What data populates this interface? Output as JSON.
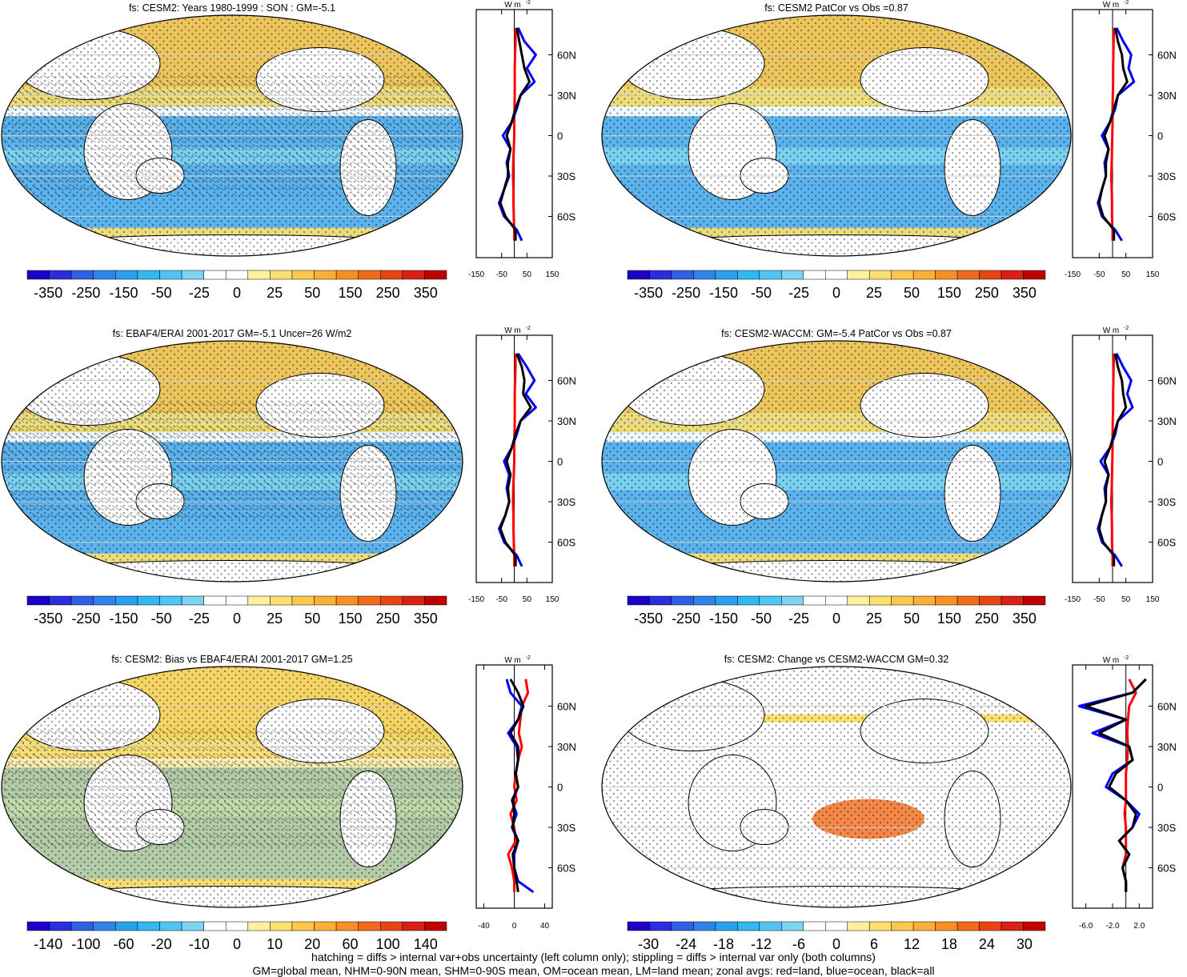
{
  "colors": {
    "palette": [
      "#1a00c8",
      "#2a2ee0",
      "#2f5fe6",
      "#2f84ea",
      "#2aa1ef",
      "#30b8f3",
      "#4fc6f2",
      "#7dd3f2",
      "#ffffff",
      "#ffffff",
      "#fff0a0",
      "#fde070",
      "#fcc84c",
      "#fbaf35",
      "#f78f23",
      "#f06a1a",
      "#e84414",
      "#db1f14",
      "#c00000"
    ],
    "land": "#ffffff",
    "zonal_land": "#ff0000",
    "zonal_ocean": "#0000ff",
    "zonal_all": "#000000"
  },
  "zonal_units": "W m",
  "zonal_units_sup": "-2",
  "lat_labels": [
    "60N",
    "30N",
    "0",
    "30S",
    "60S"
  ],
  "panels": [
    {
      "title": "fs: CESM2: Years 1980-1999 : SON : GM=-5.1",
      "hatching": true,
      "colorbar_labels": [
        "-350",
        "-250",
        "-150",
        "-50",
        "-25",
        "0",
        "25",
        "50",
        "150",
        "250",
        "350"
      ],
      "zonal_ticks": [
        "-150",
        "-50",
        "50",
        "150"
      ]
    },
    {
      "title": "fs: CESM2 PatCor vs Obs =0.87",
      "hatching": false,
      "colorbar_labels": [
        "-350",
        "-250",
        "-150",
        "-50",
        "-25",
        "0",
        "25",
        "50",
        "150",
        "250",
        "350"
      ],
      "zonal_ticks": [
        "-150",
        "-50",
        "50",
        "150"
      ]
    },
    {
      "title": "fs: EBAF4/ERAI 2001-2017 GM=-5.1 Uncer=26 W/m2",
      "hatching": true,
      "colorbar_labels": [
        "-350",
        "-250",
        "-150",
        "-50",
        "-25",
        "0",
        "25",
        "50",
        "150",
        "250",
        "350"
      ],
      "zonal_ticks": [
        "-150",
        "-50",
        "50",
        "150"
      ]
    },
    {
      "title": "fs: CESM2-WACCM: GM=-5.4 PatCor vs Obs =0.87",
      "hatching": false,
      "colorbar_labels": [
        "-350",
        "-250",
        "-150",
        "-50",
        "-25",
        "0",
        "25",
        "50",
        "150",
        "250",
        "350"
      ],
      "zonal_ticks": [
        "-150",
        "-50",
        "50",
        "150"
      ]
    },
    {
      "title": "fs: CESM2: Bias vs EBAF4/ERAI 2001-2017  GM=1.25",
      "hatching": true,
      "colorbar_labels": [
        "-140",
        "-100",
        "-60",
        "-20",
        "-10",
        "0",
        "10",
        "20",
        "60",
        "100",
        "140"
      ],
      "zonal_ticks": [
        "-40",
        "0",
        "40"
      ]
    },
    {
      "title": "fs: CESM2: Change vs CESM2-WACCM GM=0.32",
      "hatching": false,
      "colorbar_labels": [
        "-30",
        "-24",
        "-18",
        "-12",
        "-6",
        "0",
        "6",
        "12",
        "18",
        "24",
        "30"
      ],
      "zonal_ticks": [
        "-6.0",
        "-2.0",
        "2.0"
      ]
    }
  ],
  "footer": {
    "line1": "hatching = diffs > internal var+obs uncertainty (left column only); stippling = diffs > internal var only (both columns)",
    "line2": "GM=global mean, NHM=0-90N mean, SHM=0-90S mean, OM=ocean mean, LM=land mean; zonal avgs: red=land, blue=ocean, black=all"
  },
  "chart_data": [
    {
      "type": "heatmap",
      "title": "fs: CESM2: Years 1980-1999 : SON : GM=-5.1",
      "colorbar_ticks": [
        -350,
        -250,
        -150,
        -50,
        -25,
        0,
        25,
        50,
        150,
        250,
        350
      ],
      "zonal_average": {
        "xlim": [
          -150,
          150
        ],
        "lat": [
          80,
          70,
          60,
          50,
          40,
          30,
          20,
          10,
          0,
          -10,
          -20,
          -30,
          -40,
          -50,
          -60,
          -70,
          -78
        ],
        "land": [
          5,
          5,
          3,
          2,
          2,
          2,
          1,
          0,
          0,
          -2,
          -4,
          -5,
          -3,
          -3,
          -2,
          0,
          0
        ],
        "ocean": [
          15,
          40,
          85,
          50,
          80,
          25,
          10,
          -10,
          -45,
          -15,
          -30,
          -20,
          -40,
          -60,
          -40,
          10,
          30
        ],
        "all": [
          10,
          20,
          30,
          40,
          60,
          25,
          5,
          -10,
          -30,
          -15,
          -25,
          -25,
          -40,
          -55,
          -35,
          5,
          5
        ]
      }
    },
    {
      "type": "heatmap",
      "title": "fs: CESM2 PatCor vs Obs =0.87",
      "colorbar_ticks": [
        -350,
        -250,
        -150,
        -50,
        -25,
        0,
        25,
        50,
        150,
        250,
        350
      ],
      "zonal_average": {
        "xlim": [
          -150,
          150
        ],
        "lat": [
          80,
          70,
          60,
          50,
          40,
          30,
          20,
          10,
          0,
          -10,
          -20,
          -30,
          -40,
          -50,
          -60,
          -70,
          -78
        ],
        "land": [
          5,
          4,
          3,
          2,
          2,
          1,
          0,
          0,
          -1,
          -2,
          -3,
          -5,
          -3,
          -2,
          -2,
          0,
          0
        ],
        "ocean": [
          15,
          40,
          70,
          60,
          80,
          20,
          10,
          -10,
          -40,
          -15,
          -30,
          -25,
          -40,
          -55,
          -40,
          10,
          35
        ],
        "all": [
          10,
          20,
          35,
          40,
          55,
          20,
          5,
          -10,
          -30,
          -15,
          -25,
          -25,
          -40,
          -50,
          -35,
          5,
          5
        ]
      }
    },
    {
      "type": "heatmap",
      "title": "fs: EBAF4/ERAI 2001-2017 GM=-5.1 Uncer=26 W/m2",
      "colorbar_ticks": [
        -350,
        -250,
        -150,
        -50,
        -25,
        0,
        25,
        50,
        150,
        250,
        350
      ],
      "zonal_average": {
        "xlim": [
          -150,
          150
        ],
        "lat": [
          80,
          70,
          60,
          50,
          40,
          30,
          20,
          10,
          0,
          -10,
          -20,
          -30,
          -40,
          -50,
          -60,
          -70,
          -78
        ],
        "land": [
          5,
          5,
          3,
          2,
          2,
          2,
          1,
          0,
          0,
          -2,
          -4,
          -5,
          -3,
          -3,
          -2,
          0,
          0
        ],
        "ocean": [
          15,
          50,
          80,
          45,
          85,
          25,
          10,
          -10,
          -40,
          -20,
          -30,
          -20,
          -35,
          -60,
          -40,
          10,
          30
        ],
        "all": [
          10,
          30,
          40,
          35,
          65,
          25,
          5,
          -10,
          -30,
          -15,
          -25,
          -20,
          -35,
          -55,
          -35,
          5,
          5
        ]
      }
    },
    {
      "type": "heatmap",
      "title": "fs: CESM2-WACCM: GM=-5.4 PatCor vs Obs =0.87",
      "colorbar_ticks": [
        -350,
        -250,
        -150,
        -50,
        -25,
        0,
        25,
        50,
        150,
        250,
        350
      ],
      "zonal_average": {
        "xlim": [
          -150,
          150
        ],
        "lat": [
          80,
          70,
          60,
          50,
          40,
          30,
          20,
          10,
          0,
          -10,
          -20,
          -30,
          -40,
          -50,
          -60,
          -70,
          -78
        ],
        "land": [
          5,
          4,
          3,
          2,
          2,
          1,
          0,
          0,
          -1,
          -2,
          -3,
          -5,
          -3,
          -2,
          -2,
          0,
          0
        ],
        "ocean": [
          15,
          40,
          70,
          55,
          75,
          20,
          10,
          -10,
          -45,
          -15,
          -30,
          -25,
          -40,
          -55,
          -40,
          10,
          35
        ],
        "all": [
          10,
          20,
          35,
          40,
          50,
          20,
          5,
          -10,
          -30,
          -15,
          -25,
          -25,
          -40,
          -50,
          -35,
          5,
          5
        ]
      }
    },
    {
      "type": "heatmap",
      "title": "fs: CESM2: Bias vs EBAF4/ERAI 2001-2017  GM=1.25",
      "colorbar_ticks": [
        -140,
        -100,
        -60,
        -20,
        -10,
        0,
        10,
        20,
        60,
        100,
        140
      ],
      "zonal_average": {
        "xlim": [
          -50,
          50
        ],
        "lat": [
          80,
          70,
          60,
          50,
          40,
          30,
          20,
          10,
          0,
          -10,
          -20,
          -30,
          -40,
          -50,
          -60,
          -70,
          -78
        ],
        "land": [
          15,
          18,
          10,
          8,
          6,
          10,
          5,
          2,
          0,
          3,
          -5,
          0,
          2,
          -8,
          -3,
          0,
          0
        ],
        "ocean": [
          -10,
          -5,
          10,
          5,
          -8,
          3,
          5,
          2,
          5,
          -3,
          3,
          -3,
          5,
          0,
          0,
          5,
          25
        ],
        "all": [
          -5,
          5,
          12,
          5,
          -5,
          5,
          5,
          2,
          5,
          -2,
          0,
          -2,
          5,
          -2,
          0,
          3,
          5
        ]
      }
    },
    {
      "type": "heatmap",
      "title": "fs: CESM2: Change vs CESM2-WACCM GM=0.32",
      "colorbar_ticks": [
        -30,
        -24,
        -18,
        -12,
        -6,
        0,
        6,
        12,
        18,
        24,
        30
      ],
      "zonal_average": {
        "xlim": [
          -8,
          4
        ],
        "lat": [
          80,
          70,
          60,
          50,
          40,
          30,
          20,
          10,
          0,
          -10,
          -20,
          -30,
          -40,
          -50,
          -60,
          -70,
          -78
        ],
        "land": [
          0.5,
          1.5,
          0.5,
          0.3,
          0.2,
          0.3,
          0.2,
          0,
          0,
          0,
          -0.2,
          0,
          0,
          0,
          -0.5,
          0,
          0
        ],
        "ocean": [
          3,
          1,
          -7,
          0,
          -5,
          0.5,
          1,
          -2,
          -3,
          0,
          2,
          1,
          -1,
          0.5,
          -0.5,
          0,
          0
        ],
        "all": [
          3,
          1,
          -6,
          0,
          -4,
          0.5,
          1,
          -1.5,
          -2.5,
          0,
          1.5,
          1,
          -1,
          0.5,
          -0.5,
          0,
          0
        ]
      }
    }
  ]
}
